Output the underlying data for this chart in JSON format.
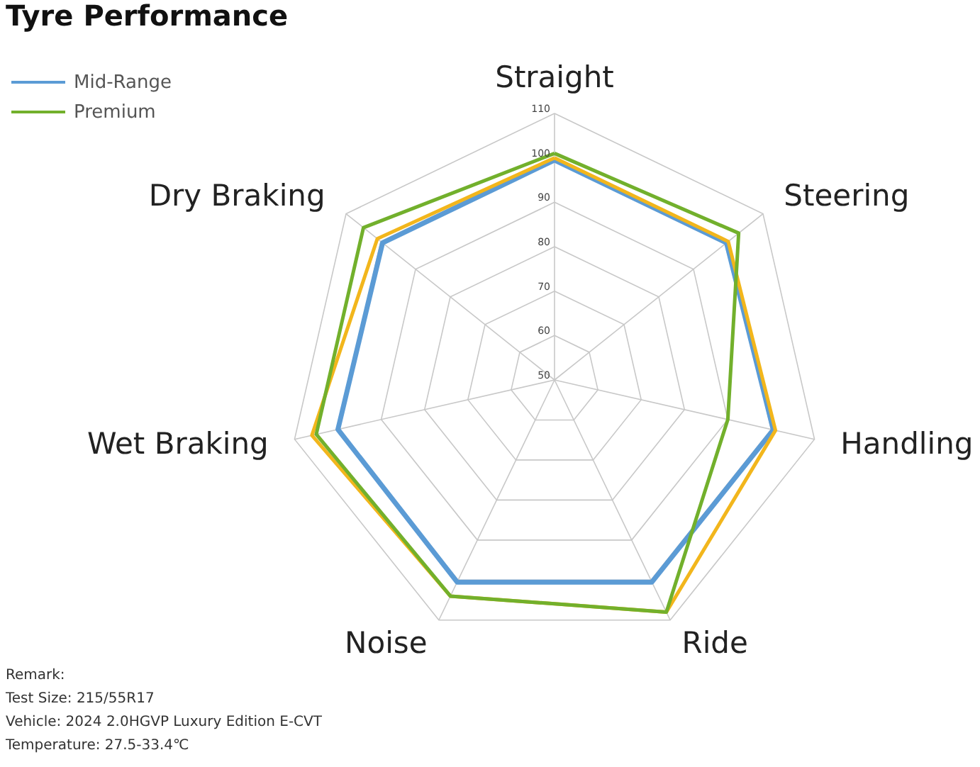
{
  "chart_data": {
    "type": "radar",
    "title": "Tyre Performance",
    "categories": [
      "Straight",
      "Steering",
      "Handling",
      "Ride",
      "Noise",
      "Wet Braking",
      "Dry Braking"
    ],
    "ylim": [
      50,
      110
    ],
    "yticks": [
      50,
      60,
      70,
      80,
      90,
      100,
      110
    ],
    "grid": true,
    "legend": "top left",
    "series": [
      {
        "name": "Mid-Range",
        "color": "#5b9bd5",
        "values": [
          99.5,
          99.5,
          100.5,
          100.5,
          100.5,
          100,
          99.5
        ]
      },
      {
        "color": "#f2b61c",
        "values": [
          100,
          100,
          101,
          108,
          104,
          106,
          101
        ]
      },
      {
        "name": "Premium",
        "color": "#72b02c",
        "values": [
          101,
          103,
          90,
          108,
          104,
          105,
          105
        ]
      }
    ],
    "annotations": [
      "Remark:",
      "Test Size: 215/55R17",
      "Vehicle: 2024 2.0HGVP Luxury Edition E-CVT",
      "Temperature: 27.5-33.4℃"
    ]
  }
}
